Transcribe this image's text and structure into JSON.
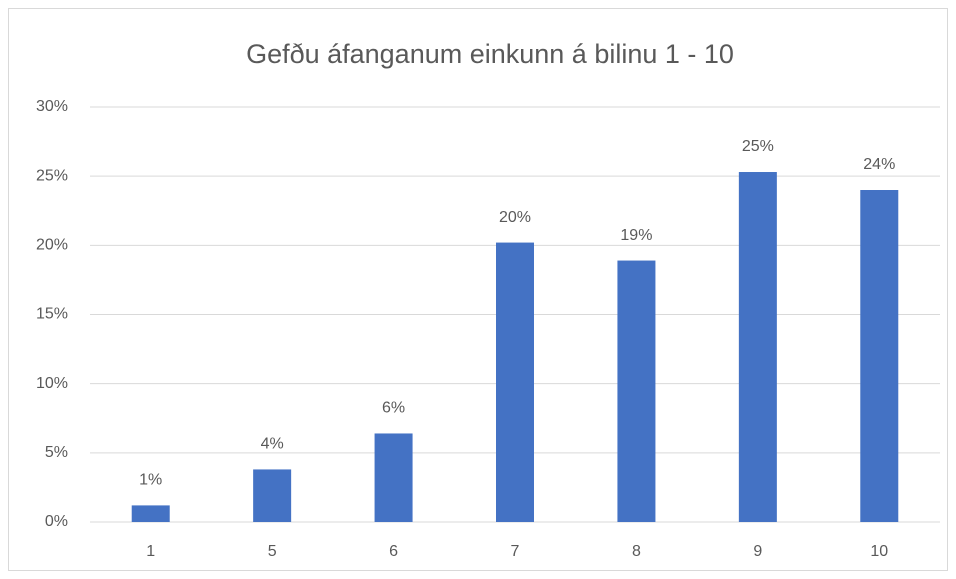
{
  "chart_data": {
    "type": "bar",
    "title": "Gefðu áfanganum einkunn á bilinu 1 - 10",
    "categories": [
      "1",
      "5",
      "6",
      "7",
      "8",
      "9",
      "10"
    ],
    "values": [
      1.2,
      3.8,
      6.4,
      20.2,
      18.9,
      25.3,
      24.0
    ],
    "value_labels": [
      "1%",
      "4%",
      "6%",
      "20%",
      "19%",
      "25%",
      "24%"
    ],
    "color": "#4472c4",
    "ylim": [
      0,
      30
    ],
    "yticks": [
      {
        "value": 0,
        "label": "0%"
      },
      {
        "value": 5,
        "label": "5%"
      },
      {
        "value": 10,
        "label": "10%"
      },
      {
        "value": 15,
        "label": "15%"
      },
      {
        "value": 20,
        "label": "20%"
      },
      {
        "value": 25,
        "label": "25%"
      },
      {
        "value": 30,
        "label": "30%"
      }
    ],
    "grid": true
  }
}
